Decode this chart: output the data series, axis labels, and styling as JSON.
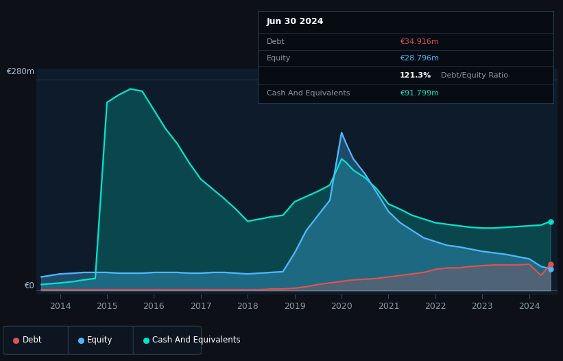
{
  "bg_color": "#0d1117",
  "plot_bg_color": "#0d1b2a",
  "grid_color": "#1e2d3d",
  "title_box": {
    "date": "Jun 30 2024",
    "debt_label": "Debt",
    "debt_value": "€34.916m",
    "equity_label": "Equity",
    "equity_value": "€28.796m",
    "ratio": "121.3%",
    "ratio_label": "Debt/Equity Ratio",
    "cash_label": "Cash And Equivalents",
    "cash_value": "€91.799m"
  },
  "ylabel_top": "€280m",
  "ylabel_bottom": "€0",
  "x_ticks": [
    2014,
    2015,
    2016,
    2017,
    2018,
    2019,
    2020,
    2021,
    2022,
    2023,
    2024
  ],
  "debt_color": "#e05252",
  "equity_color": "#4db8ff",
  "cash_color": "#00e5cc",
  "legend_items": [
    "Debt",
    "Equity",
    "Cash And Equivalents"
  ],
  "years": [
    2013.6,
    2014.0,
    2014.3,
    2014.5,
    2014.75,
    2015.0,
    2015.25,
    2015.5,
    2015.75,
    2016.0,
    2016.25,
    2016.5,
    2016.75,
    2017.0,
    2017.25,
    2017.5,
    2017.75,
    2018.0,
    2018.25,
    2018.5,
    2018.75,
    2019.0,
    2019.25,
    2019.5,
    2019.75,
    2020.0,
    2020.1,
    2020.25,
    2020.5,
    2020.75,
    2021.0,
    2021.25,
    2021.5,
    2021.75,
    2022.0,
    2022.25,
    2022.5,
    2022.75,
    2023.0,
    2023.25,
    2023.5,
    2023.75,
    2024.0,
    2024.25,
    2024.45
  ],
  "debt": [
    1,
    1,
    1,
    1,
    1,
    1,
    1,
    1,
    1,
    1,
    1,
    1,
    1,
    1,
    1,
    1,
    1,
    1,
    1,
    2,
    2,
    3,
    5,
    8,
    10,
    12,
    13,
    14,
    15,
    16,
    18,
    20,
    22,
    24,
    28,
    30,
    30,
    32,
    33,
    34,
    34,
    34,
    35,
    20,
    34.916
  ],
  "equity": [
    18,
    22,
    23,
    24,
    24,
    24,
    23,
    23,
    23,
    24,
    24,
    24,
    23,
    23,
    24,
    24,
    23,
    22,
    23,
    24,
    25,
    50,
    80,
    100,
    120,
    210,
    195,
    175,
    155,
    130,
    105,
    90,
    80,
    70,
    65,
    60,
    58,
    55,
    52,
    50,
    48,
    45,
    42,
    32,
    28.796
  ],
  "cash": [
    8,
    10,
    12,
    14,
    16,
    250,
    260,
    268,
    265,
    240,
    215,
    195,
    170,
    148,
    135,
    122,
    108,
    92,
    95,
    98,
    100,
    118,
    125,
    132,
    140,
    175,
    170,
    160,
    150,
    135,
    115,
    108,
    100,
    95,
    90,
    88,
    86,
    84,
    83,
    83,
    84,
    85,
    86,
    87,
    91.799
  ],
  "ymax": 295,
  "xlim_left": 2013.5,
  "xlim_right": 2024.6
}
